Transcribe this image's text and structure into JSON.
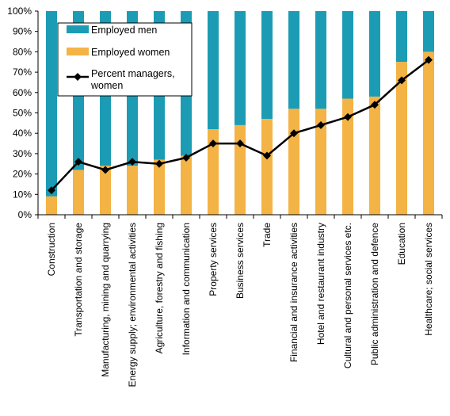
{
  "chart_data": {
    "type": "bar",
    "stacked": true,
    "percent_stacked": true,
    "categories": [
      "Construction",
      "Transportation and storage",
      "Manufacturing, mining and quarrying",
      "Energy supply; environmental activities",
      "Agriculture, forestry and fishing",
      "Information and communication",
      "Property services",
      "Business services",
      "Trade",
      "Financial and insurance activities",
      "Hotel and restaurant industry",
      "Cultural and personal services etc.",
      "Public administration and defence",
      "Education",
      "Healthcare; social services"
    ],
    "series": [
      {
        "name": "Employed women",
        "type": "bar",
        "color": "#F4B345",
        "values": [
          9,
          22,
          24,
          24,
          27,
          29,
          42,
          44,
          47,
          52,
          52,
          57,
          58,
          75,
          80
        ]
      },
      {
        "name": "Employed men",
        "type": "bar",
        "color": "#1C9CB4",
        "values": [
          91,
          78,
          76,
          76,
          73,
          71,
          58,
          56,
          53,
          48,
          48,
          43,
          42,
          25,
          20
        ]
      },
      {
        "name": "Percent managers, women",
        "type": "line",
        "color": "#000000",
        "values": [
          12,
          26,
          22,
          26,
          25,
          28,
          35,
          35,
          29,
          40,
          44,
          48,
          54,
          66,
          76
        ]
      }
    ],
    "legend_order": [
      "Employed men",
      "Employed women",
      "Percent managers, women"
    ],
    "y_ticks": [
      "0%",
      "10%",
      "20%",
      "30%",
      "40%",
      "50%",
      "60%",
      "70%",
      "80%",
      "90%",
      "100%"
    ],
    "ylim": [
      0,
      100
    ],
    "legend_position": "top-left",
    "grid": false
  }
}
